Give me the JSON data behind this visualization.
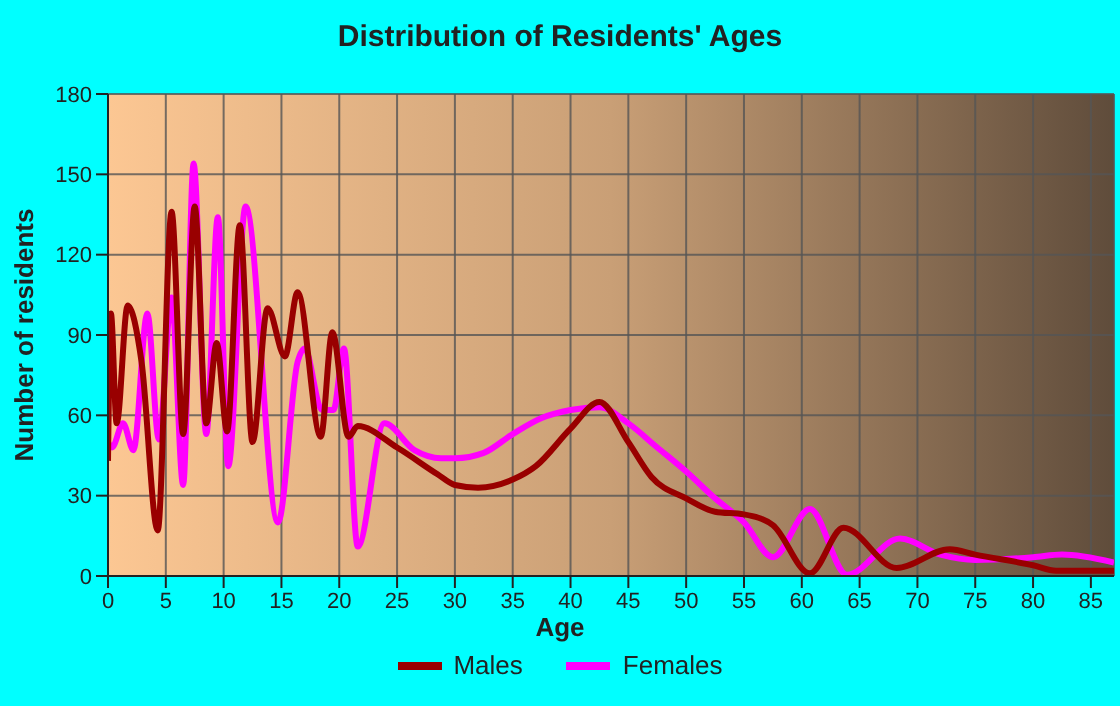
{
  "chart_data": {
    "type": "line",
    "title": "Distribution of Residents' Ages",
    "xlabel": "Age",
    "ylabel": "Number of residents",
    "xlim": [
      0,
      87
    ],
    "xticks": [
      0,
      5,
      10,
      15,
      20,
      25,
      30,
      35,
      40,
      45,
      50,
      55,
      60,
      65,
      70,
      75,
      80,
      85
    ],
    "ylim": [
      0,
      180
    ],
    "yticks": [
      0,
      30,
      60,
      90,
      120,
      150,
      180
    ],
    "grid": true,
    "legend": "bottom",
    "marker": "none",
    "line_style": "solid",
    "series": [
      {
        "name": "Males",
        "color": "#990000",
        "x": [
          0,
          0.25,
          0.75,
          1.7,
          2.9,
          4.3,
          5.5,
          6.5,
          7.5,
          8.5,
          9.4,
          10.3,
          11.4,
          12.5,
          13.8,
          15.3,
          16.4,
          18.4,
          19.4,
          20.8,
          21.6,
          25,
          28.5,
          30,
          32,
          35,
          37,
          40,
          42.5,
          45,
          47,
          50,
          52.5,
          55,
          57.5,
          60.7,
          63.6,
          68.2,
          72.8,
          75,
          80,
          82,
          87
        ],
        "values": [
          43,
          98,
          57,
          101,
          80,
          17,
          136,
          53,
          138,
          57,
          87,
          54,
          131,
          50,
          100,
          82,
          106,
          52,
          91,
          52,
          56,
          48,
          38,
          34,
          33,
          36,
          41,
          55,
          65,
          50,
          37,
          29,
          24,
          23,
          19,
          1,
          18,
          3,
          10,
          8,
          4,
          2,
          2
        ]
      },
      {
        "name": "Females",
        "color": "#ff00ff",
        "x": [
          0,
          0.35,
          1.3,
          2.2,
          3.4,
          4.4,
          5.5,
          6.5,
          7.4,
          8.5,
          9.5,
          10.4,
          11.9,
          14.7,
          16.4,
          17,
          18.5,
          19.5,
          20.4,
          21.6,
          23.9,
          26.5,
          28.8,
          30,
          32.5,
          35,
          37.5,
          40,
          42.5,
          45,
          47.5,
          50,
          52.5,
          55,
          57.5,
          60.7,
          63.9,
          68.5,
          72,
          75,
          80,
          82.5,
          87
        ],
        "values": [
          50,
          48,
          57,
          47,
          98,
          51,
          104,
          34,
          154,
          53,
          134,
          41,
          138,
          20,
          80,
          85,
          62,
          62,
          85,
          11,
          57,
          47,
          44,
          44,
          46,
          53,
          59,
          62,
          63,
          57,
          48,
          39,
          29,
          20,
          7,
          25,
          0.5,
          14,
          8,
          6,
          7,
          8,
          5
        ]
      }
    ]
  }
}
